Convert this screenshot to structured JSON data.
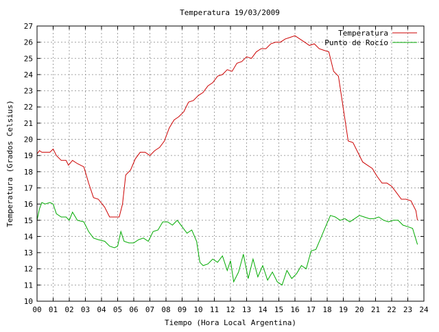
{
  "chart_data": {
    "type": "line",
    "title": "Temperatura 19/03/2009",
    "xlabel": "Tiempo (Hora Local Argentina)",
    "ylabel": "Temperatura (Grados Celsius)",
    "xlim": [
      0,
      24
    ],
    "ylim": [
      10,
      27
    ],
    "x_ticks": [
      "00",
      "01",
      "02",
      "03",
      "04",
      "05",
      "06",
      "07",
      "08",
      "09",
      "10",
      "11",
      "12",
      "13",
      "14",
      "15",
      "16",
      "17",
      "18",
      "19",
      "20",
      "21",
      "22",
      "23",
      "24"
    ],
    "y_ticks": [
      10,
      11,
      12,
      13,
      14,
      15,
      16,
      17,
      18,
      19,
      20,
      21,
      22,
      23,
      24,
      25,
      26,
      27
    ],
    "grid": true,
    "legend_position": "top-right",
    "colors": {
      "Temperatura": "#cc0000",
      "Punto de Rocío": "#00aa00"
    },
    "series": [
      {
        "name": "Temperatura",
        "x": [
          0.0,
          0.15,
          0.3,
          0.5,
          0.8,
          1.0,
          1.2,
          1.5,
          1.8,
          1.95,
          2.2,
          2.5,
          2.9,
          3.2,
          3.5,
          3.8,
          4.2,
          4.5,
          4.8,
          5.1,
          5.3,
          5.5,
          5.8,
          6.1,
          6.4,
          6.7,
          7.0,
          7.3,
          7.6,
          7.9,
          8.2,
          8.5,
          8.8,
          9.1,
          9.4,
          9.7,
          10.0,
          10.3,
          10.6,
          10.9,
          11.2,
          11.5,
          11.8,
          12.1,
          12.4,
          12.7,
          13.0,
          13.3,
          13.6,
          13.9,
          14.2,
          14.5,
          14.8,
          15.1,
          15.4,
          15.7,
          16.0,
          16.3,
          16.6,
          16.9,
          17.2,
          17.5,
          17.8,
          18.1,
          18.4,
          18.7,
          19.0,
          19.3,
          19.6,
          19.9,
          20.2,
          20.5,
          20.8,
          21.1,
          21.4,
          21.7,
          22.0,
          22.3,
          22.6,
          22.9,
          23.2,
          23.5,
          23.6
        ],
        "values": [
          19.1,
          19.3,
          19.2,
          19.2,
          19.2,
          19.4,
          19.0,
          18.7,
          18.7,
          18.4,
          18.7,
          18.5,
          18.3,
          17.3,
          16.4,
          16.3,
          15.8,
          15.2,
          15.2,
          15.2,
          16.0,
          17.8,
          18.1,
          18.8,
          19.2,
          19.2,
          19.0,
          19.3,
          19.5,
          19.9,
          20.7,
          21.2,
          21.4,
          21.7,
          22.3,
          22.4,
          22.7,
          22.9,
          23.3,
          23.5,
          23.9,
          24.0,
          24.3,
          24.2,
          24.7,
          24.8,
          25.1,
          25.0,
          25.4,
          25.6,
          25.6,
          25.9,
          26.0,
          26.0,
          26.2,
          26.3,
          26.4,
          26.2,
          26.0,
          25.8,
          25.9,
          25.6,
          25.5,
          25.4,
          24.2,
          23.9,
          21.9,
          19.9,
          19.8,
          19.2,
          18.6,
          18.4,
          18.2,
          17.7,
          17.3,
          17.3,
          17.1,
          16.7,
          16.3,
          16.3,
          16.2,
          15.6,
          15.0
        ]
      },
      {
        "name": "Punto de Rocío",
        "x": [
          0.0,
          0.15,
          0.3,
          0.5,
          0.8,
          1.0,
          1.2,
          1.5,
          1.8,
          2.0,
          2.2,
          2.5,
          2.9,
          3.2,
          3.5,
          3.8,
          4.2,
          4.5,
          4.8,
          5.0,
          5.2,
          5.4,
          5.7,
          6.0,
          6.3,
          6.6,
          6.9,
          7.2,
          7.5,
          7.8,
          8.1,
          8.4,
          8.7,
          9.0,
          9.3,
          9.6,
          9.9,
          10.1,
          10.3,
          10.6,
          10.9,
          11.2,
          11.5,
          11.8,
          12.0,
          12.2,
          12.5,
          12.8,
          13.1,
          13.4,
          13.7,
          14.0,
          14.3,
          14.6,
          14.9,
          15.2,
          15.5,
          15.8,
          16.1,
          16.4,
          16.7,
          17.0,
          17.3,
          17.6,
          17.9,
          18.2,
          18.5,
          18.8,
          19.1,
          19.4,
          19.7,
          20.0,
          20.3,
          20.6,
          20.9,
          21.2,
          21.5,
          21.8,
          22.1,
          22.4,
          22.7,
          23.0,
          23.3,
          23.6
        ],
        "values": [
          15.0,
          15.7,
          16.1,
          16.0,
          16.1,
          16.0,
          15.4,
          15.2,
          15.2,
          15.0,
          15.5,
          15.0,
          14.9,
          14.3,
          13.9,
          13.8,
          13.7,
          13.4,
          13.3,
          13.4,
          14.3,
          13.7,
          13.6,
          13.6,
          13.8,
          13.9,
          13.7,
          14.3,
          14.4,
          14.9,
          14.9,
          14.7,
          15.0,
          14.6,
          14.2,
          14.4,
          13.7,
          12.4,
          12.2,
          12.3,
          12.6,
          12.4,
          12.8,
          11.9,
          12.5,
          11.2,
          11.8,
          12.9,
          11.4,
          12.6,
          11.5,
          12.2,
          11.3,
          11.8,
          11.2,
          11.0,
          11.9,
          11.4,
          11.7,
          12.2,
          12.0,
          13.1,
          13.2,
          13.9,
          14.6,
          15.3,
          15.2,
          15.0,
          15.1,
          14.9,
          15.1,
          15.3,
          15.2,
          15.1,
          15.1,
          15.2,
          15.0,
          14.9,
          15.0,
          15.0,
          14.7,
          14.6,
          14.5,
          13.5
        ]
      }
    ]
  }
}
